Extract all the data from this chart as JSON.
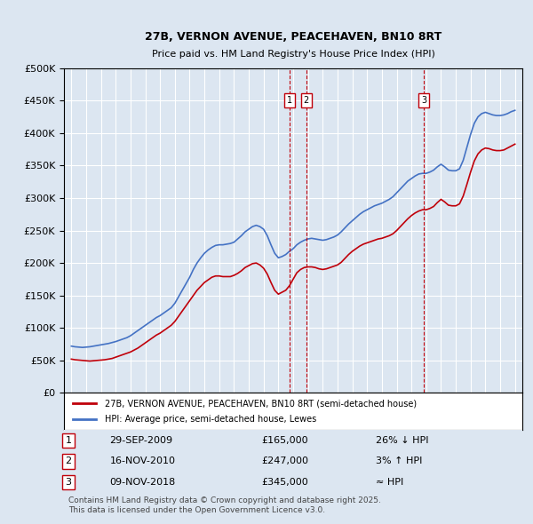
{
  "title": "27B, VERNON AVENUE, PEACEHAVEN, BN10 8RT",
  "subtitle": "Price paid vs. HM Land Registry's House Price Index (HPI)",
  "legend_line1": "27B, VERNON AVENUE, PEACEHAVEN, BN10 8RT (semi-detached house)",
  "legend_line2": "HPI: Average price, semi-detached house, Lewes",
  "footer": "Contains HM Land Registry data © Crown copyright and database right 2025.\nThis data is licensed under the Open Government Licence v3.0.",
  "transactions": [
    {
      "num": 1,
      "date": "29-SEP-2009",
      "price": 165000,
      "hpi_note": "26% ↓ HPI"
    },
    {
      "num": 2,
      "date": "16-NOV-2010",
      "price": 247000,
      "hpi_note": "3% ↑ HPI"
    },
    {
      "num": 3,
      "date": "09-NOV-2018",
      "price": 345000,
      "hpi_note": "≈ HPI"
    }
  ],
  "transaction_years": [
    2009.75,
    2010.88,
    2018.86
  ],
  "ylim": [
    0,
    500000
  ],
  "yticks": [
    0,
    50000,
    100000,
    150000,
    200000,
    250000,
    300000,
    350000,
    400000,
    450000,
    500000
  ],
  "xlim_left": 1994.5,
  "xlim_right": 2025.5,
  "bg_color": "#dce6f1",
  "plot_bg_color": "#dce6f1",
  "grid_color": "#ffffff",
  "red_color": "#c0000a",
  "blue_color": "#4472c4",
  "hpi_years": [
    1995,
    1995.25,
    1995.5,
    1995.75,
    1996,
    1996.25,
    1996.5,
    1996.75,
    1997,
    1997.25,
    1997.5,
    1997.75,
    1998,
    1998.25,
    1998.5,
    1998.75,
    1999,
    1999.25,
    1999.5,
    1999.75,
    2000,
    2000.25,
    2000.5,
    2000.75,
    2001,
    2001.25,
    2001.5,
    2001.75,
    2002,
    2002.25,
    2002.5,
    2002.75,
    2003,
    2003.25,
    2003.5,
    2003.75,
    2004,
    2004.25,
    2004.5,
    2004.75,
    2005,
    2005.25,
    2005.5,
    2005.75,
    2006,
    2006.25,
    2006.5,
    2006.75,
    2007,
    2007.25,
    2007.5,
    2007.75,
    2008,
    2008.25,
    2008.5,
    2008.75,
    2009,
    2009.25,
    2009.5,
    2009.75,
    2010,
    2010.25,
    2010.5,
    2010.75,
    2011,
    2011.25,
    2011.5,
    2011.75,
    2012,
    2012.25,
    2012.5,
    2012.75,
    2013,
    2013.25,
    2013.5,
    2013.75,
    2014,
    2014.25,
    2014.5,
    2014.75,
    2015,
    2015.25,
    2015.5,
    2015.75,
    2016,
    2016.25,
    2016.5,
    2016.75,
    2017,
    2017.25,
    2017.5,
    2017.75,
    2018,
    2018.25,
    2018.5,
    2018.75,
    2019,
    2019.25,
    2019.5,
    2019.75,
    2020,
    2020.25,
    2020.5,
    2020.75,
    2021,
    2021.25,
    2021.5,
    2021.75,
    2022,
    2022.25,
    2022.5,
    2022.75,
    2023,
    2023.25,
    2023.5,
    2023.75,
    2024,
    2024.25,
    2024.5,
    2024.75,
    2025
  ],
  "hpi_values": [
    72000,
    71000,
    70500,
    70000,
    70500,
    71000,
    72000,
    73000,
    74000,
    75000,
    76000,
    77500,
    79000,
    81000,
    83000,
    85000,
    88000,
    92000,
    96000,
    100000,
    104000,
    108000,
    112000,
    116000,
    119000,
    123000,
    127000,
    131000,
    138000,
    148000,
    158000,
    168000,
    178000,
    190000,
    200000,
    208000,
    215000,
    220000,
    224000,
    227000,
    228000,
    228000,
    229000,
    230000,
    232000,
    237000,
    242000,
    248000,
    252000,
    256000,
    258000,
    256000,
    252000,
    242000,
    228000,
    215000,
    208000,
    210000,
    213000,
    218000,
    222000,
    228000,
    232000,
    235000,
    237000,
    238000,
    237000,
    236000,
    235000,
    236000,
    238000,
    240000,
    243000,
    248000,
    254000,
    260000,
    265000,
    270000,
    275000,
    279000,
    282000,
    285000,
    288000,
    290000,
    292000,
    295000,
    298000,
    302000,
    308000,
    314000,
    320000,
    326000,
    330000,
    334000,
    337000,
    338000,
    338000,
    340000,
    343000,
    348000,
    352000,
    348000,
    343000,
    342000,
    342000,
    345000,
    358000,
    378000,
    398000,
    415000,
    425000,
    430000,
    432000,
    430000,
    428000,
    427000,
    427000,
    428000,
    430000,
    433000,
    435000
  ],
  "red_years": [
    1995,
    1995.25,
    1995.5,
    1995.75,
    1996,
    1996.25,
    1996.5,
    1996.75,
    1997,
    1997.25,
    1997.5,
    1997.75,
    1998,
    1998.25,
    1998.5,
    1998.75,
    1999,
    1999.25,
    1999.5,
    1999.75,
    2000,
    2000.25,
    2000.5,
    2000.75,
    2001,
    2001.25,
    2001.5,
    2001.75,
    2002,
    2002.25,
    2002.5,
    2002.75,
    2003,
    2003.25,
    2003.5,
    2003.75,
    2004,
    2004.25,
    2004.5,
    2004.75,
    2005,
    2005.25,
    2005.5,
    2005.75,
    2006,
    2006.25,
    2006.5,
    2006.75,
    2007,
    2007.25,
    2007.5,
    2007.75,
    2008,
    2008.25,
    2008.5,
    2008.75,
    2009,
    2009.25,
    2009.5,
    2009.75,
    2010,
    2010.25,
    2010.5,
    2010.75,
    2011,
    2011.25,
    2011.5,
    2011.75,
    2012,
    2012.25,
    2012.5,
    2012.75,
    2013,
    2013.25,
    2013.5,
    2013.75,
    2014,
    2014.25,
    2014.5,
    2014.75,
    2015,
    2015.25,
    2015.5,
    2015.75,
    2016,
    2016.25,
    2016.5,
    2016.75,
    2017,
    2017.25,
    2017.5,
    2017.75,
    2018,
    2018.25,
    2018.5,
    2018.75,
    2019,
    2019.25,
    2019.5,
    2019.75,
    2020,
    2020.25,
    2020.5,
    2020.75,
    2021,
    2021.25,
    2021.5,
    2021.75,
    2022,
    2022.25,
    2022.5,
    2022.75,
    2023,
    2023.25,
    2023.5,
    2023.75,
    2024,
    2024.25,
    2024.5,
    2024.75,
    2025
  ],
  "red_values": [
    52000,
    51000,
    50500,
    50000,
    49500,
    49000,
    49500,
    50000,
    50500,
    51000,
    52000,
    53000,
    55000,
    57000,
    59000,
    61000,
    63000,
    66000,
    69000,
    73000,
    77000,
    81000,
    85000,
    89000,
    92000,
    96000,
    100000,
    104000,
    110000,
    118000,
    126000,
    134000,
    142000,
    150000,
    158000,
    164000,
    170000,
    174000,
    178000,
    180000,
    180000,
    179000,
    179000,
    179000,
    181000,
    184000,
    188000,
    193000,
    196000,
    199000,
    200000,
    197000,
    192000,
    183000,
    170000,
    158000,
    152000,
    155000,
    158000,
    165000,
    175000,
    185000,
    190000,
    193000,
    194000,
    194000,
    193000,
    191000,
    190000,
    191000,
    193000,
    195000,
    197000,
    201000,
    207000,
    213000,
    218000,
    222000,
    226000,
    229000,
    231000,
    233000,
    235000,
    237000,
    238000,
    240000,
    242000,
    245000,
    250000,
    256000,
    262000,
    268000,
    273000,
    277000,
    280000,
    282000,
    282000,
    284000,
    287000,
    293000,
    298000,
    294000,
    289000,
    288000,
    288000,
    291000,
    303000,
    321000,
    340000,
    357000,
    368000,
    374000,
    377000,
    376000,
    374000,
    373000,
    373000,
    374000,
    377000,
    380000,
    383000
  ]
}
